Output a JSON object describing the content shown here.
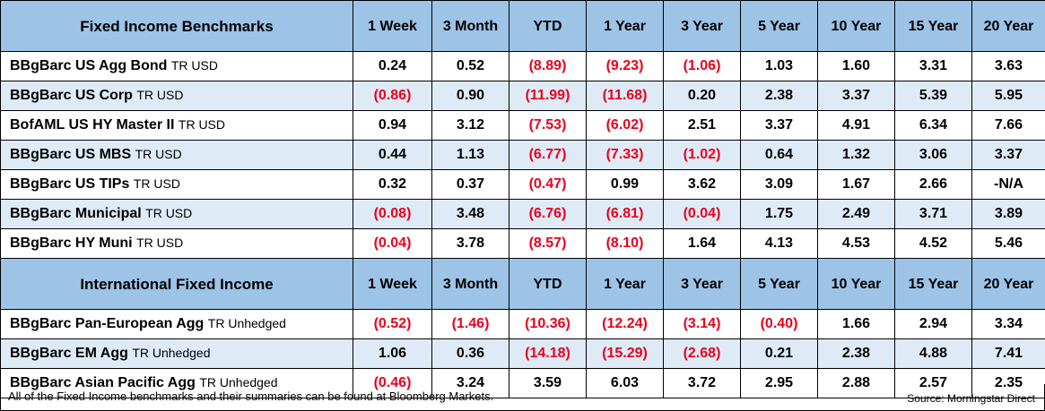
{
  "sections": [
    {
      "title": "Fixed Income Benchmarks",
      "headers": [
        "1 Week",
        "3 Month",
        "YTD",
        "1 Year",
        "3 Year",
        "5 Year",
        "10 Year",
        "15 Year",
        "20 Year"
      ],
      "rows": [
        {
          "name": "BBgBarc US Agg Bond",
          "suffix": "TR USD",
          "values": [
            "0.24",
            "0.52",
            "(8.89)",
            "(9.23)",
            "(1.06)",
            "1.03",
            "1.60",
            "3.31",
            "3.63"
          ]
        },
        {
          "name": "BBgBarc US Corp",
          "suffix": "TR USD",
          "values": [
            "(0.86)",
            "0.90",
            "(11.99)",
            "(11.68)",
            "0.20",
            "2.38",
            "3.37",
            "5.39",
            "5.95"
          ]
        },
        {
          "name": "BofAML US HY Master II",
          "suffix": "TR USD",
          "values": [
            "0.94",
            "3.12",
            "(7.53)",
            "(6.02)",
            "2.51",
            "3.37",
            "4.91",
            "6.34",
            "7.66"
          ]
        },
        {
          "name": "BBgBarc US MBS",
          "suffix": "TR USD",
          "values": [
            "0.44",
            "1.13",
            "(6.77)",
            "(7.33)",
            "(1.02)",
            "0.64",
            "1.32",
            "3.06",
            "3.37"
          ]
        },
        {
          "name": "BBgBarc US TIPs",
          "suffix": "TR USD",
          "values": [
            "0.32",
            "0.37",
            "(0.47)",
            "0.99",
            "3.62",
            "3.09",
            "1.67",
            "2.66",
            "-N/A"
          ]
        },
        {
          "name": "BBgBarc Municipal",
          "suffix": "TR USD",
          "values": [
            "(0.08)",
            "3.48",
            "(6.76)",
            "(6.81)",
            "(0.04)",
            "1.75",
            "2.49",
            "3.71",
            "3.89"
          ]
        },
        {
          "name": "BBgBarc HY Muni",
          "suffix": "TR USD",
          "values": [
            "(0.04)",
            "3.78",
            "(8.57)",
            "(8.10)",
            "1.64",
            "4.13",
            "4.53",
            "4.52",
            "5.46"
          ]
        }
      ]
    },
    {
      "title": "International Fixed Income",
      "headers": [
        "1 Week",
        "3 Month",
        "YTD",
        "1 Year",
        "3 Year",
        "5 Year",
        "10 Year",
        "15 Year",
        "20 Year"
      ],
      "rows": [
        {
          "name": "BBgBarc Pan-European Agg",
          "suffix": "TR Unhedged",
          "values": [
            "(0.52)",
            "(1.46)",
            "(10.36)",
            "(12.24)",
            "(3.14)",
            "(0.40)",
            "1.66",
            "2.94",
            "3.34"
          ]
        },
        {
          "name": "BBgBarc EM Agg",
          "suffix": "TR Unhedged",
          "values": [
            "1.06",
            "0.36",
            "(14.18)",
            "(15.29)",
            "(2.68)",
            "0.21",
            "2.38",
            "4.88",
            "7.41"
          ]
        },
        {
          "name": "BBgBarc Asian Pacific Agg",
          "suffix": "TR Unhedged",
          "values": [
            "(0.46)",
            "3.24",
            "3.59",
            "6.03",
            "3.72",
            "2.95",
            "2.88",
            "2.57",
            "2.35"
          ]
        }
      ]
    }
  ],
  "footnote": "All of the Fixed Income benchmarks and their summaries can be found at Bloomberg Markets.",
  "source": "Source: Morningstar Direct",
  "colors": {
    "header_bg": "#9dc3e6",
    "shaded_row_bg": "#deebf7",
    "negative_text": "#e8001c"
  }
}
